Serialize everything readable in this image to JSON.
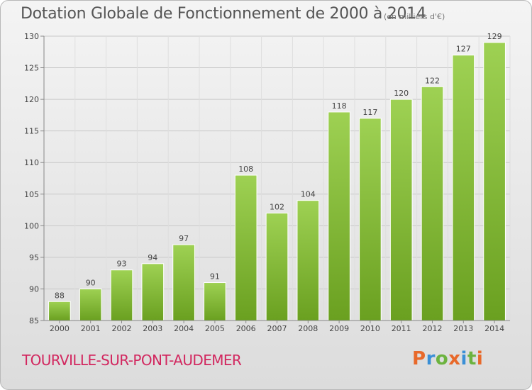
{
  "chart_data": {
    "type": "bar",
    "title": "Dotation Globale de Fonctionnement de 2000 à 2014",
    "subtitle": "(en milliers d'€)",
    "categories": [
      "2000",
      "2001",
      "2002",
      "2003",
      "2004",
      "2005",
      "2006",
      "2007",
      "2008",
      "2009",
      "2010",
      "2011",
      "2012",
      "2013",
      "2014"
    ],
    "values": [
      88,
      90,
      93,
      94,
      97,
      91,
      108,
      102,
      104,
      118,
      117,
      120,
      122,
      127,
      129
    ],
    "ylim": [
      85,
      130
    ],
    "yticks": [
      85,
      90,
      95,
      100,
      105,
      110,
      115,
      120,
      125,
      130
    ],
    "xlabel": "",
    "ylabel": "",
    "grid": true,
    "bar_color": "#8cc63f",
    "bar_color_dark": "#6aa020"
  },
  "footer": {
    "commune": "TOURVILLE-SUR-PONT-AUDEMER",
    "logo_letters": [
      "P",
      "r",
      "o",
      "x",
      "i",
      "t",
      "i"
    ],
    "logo_colors": [
      "#e8692a",
      "#3a8fd6",
      "#6cb33f",
      "#e8692a",
      "#3a8fd6",
      "#6cb33f",
      "#e8692a"
    ]
  }
}
